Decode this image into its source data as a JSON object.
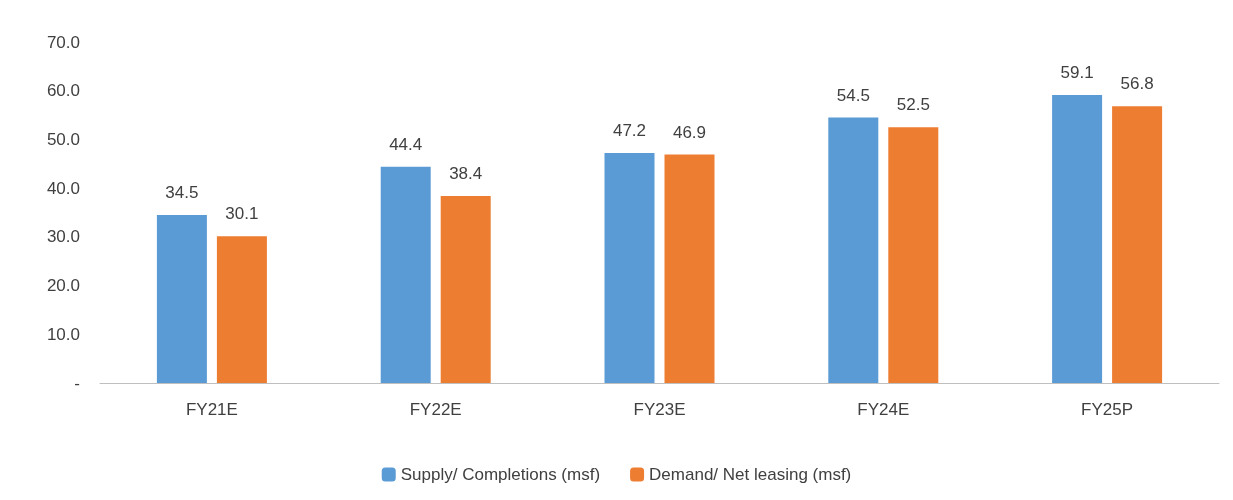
{
  "chart_data": {
    "type": "bar",
    "categories": [
      "FY21E",
      "FY22E",
      "FY23E",
      "FY24E",
      "FY25P"
    ],
    "series": [
      {
        "name": "Supply/ Completions (msf)",
        "color": "#5b9bd5",
        "values": [
          34.5,
          44.4,
          47.2,
          54.5,
          59.1
        ]
      },
      {
        "name": "Demand/ Net leasing (msf)",
        "color": "#ed7d31",
        "values": [
          30.1,
          38.4,
          46.9,
          52.5,
          56.8
        ]
      }
    ],
    "ylim": [
      0,
      70
    ],
    "yticks": [
      {
        "value": 0,
        "label": "-"
      },
      {
        "value": 10,
        "label": "10.0"
      },
      {
        "value": 20,
        "label": "20.0"
      },
      {
        "value": 30,
        "label": "30.0"
      },
      {
        "value": 40,
        "label": "40.0"
      },
      {
        "value": 50,
        "label": "50.0"
      },
      {
        "value": 60,
        "label": "60.0"
      },
      {
        "value": 70,
        "label": "70.0"
      }
    ],
    "grid": false,
    "legend": "bottom",
    "data_labels": true
  }
}
